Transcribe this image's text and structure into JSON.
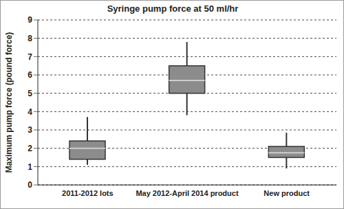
{
  "chart_data": {
    "type": "box",
    "title": "Syringe pump force at 50 ml/hr",
    "y_label": "Maximum pump force (pound force)",
    "categories": [
      "2011-2012 lots",
      "May 2012-April 2014 product",
      "New product"
    ],
    "min": [
      1.1,
      3.8,
      0.9
    ],
    "q1": [
      1.4,
      5.0,
      1.5
    ],
    "median": [
      2.0,
      5.7,
      1.75
    ],
    "q3": [
      2.4,
      6.5,
      2.1
    ],
    "max": [
      3.7,
      7.8,
      2.85
    ],
    "color": "#8c8c8c",
    "ylim": [
      0,
      9
    ],
    "yticks": [
      0,
      1,
      2,
      3,
      4,
      5,
      6,
      7,
      8,
      9
    ],
    "grid": true
  }
}
